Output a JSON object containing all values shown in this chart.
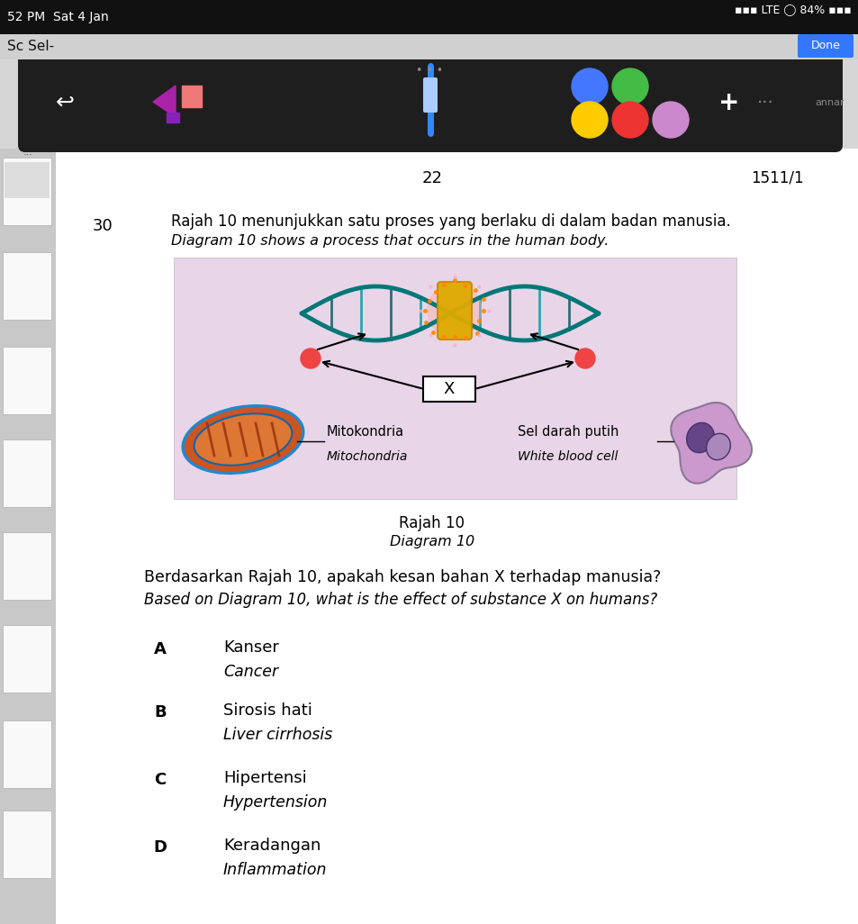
{
  "page_number": "22",
  "page_code": "1511/1",
  "question_number": "30",
  "question_text_malay": "Rajah 10 menunjukkan satu proses yang berlaku di dalam badan manusia.",
  "question_text_english": "Diagram 10 shows a process that occurs in the human body.",
  "diagram_caption_malay": "Rajah 10",
  "diagram_caption_english": "Diagram 10",
  "diagram_label_left_malay": "Mitokondria",
  "diagram_label_left_english": "Mitochondria",
  "diagram_label_right_malay": "Sel darah putih",
  "diagram_label_right_english": "White blood cell",
  "diagram_x_label": "X",
  "question_stem_malay": "Berdasarkan Rajah 10, apakah kesan bahan X terhadap manusia?",
  "question_stem_english": "Based on Diagram 10, what is the effect of substance X on humans?",
  "options": [
    {
      "letter": "A",
      "malay": "Kanser",
      "english": "Cancer"
    },
    {
      "letter": "B",
      "malay": "Sirosis hati",
      "english": "Liver cirrhosis"
    },
    {
      "letter": "C",
      "malay": "Hipertensi",
      "english": "Hypertension"
    },
    {
      "letter": "D",
      "malay": "Keradangan",
      "english": "Inflammation"
    }
  ],
  "bg_color": "#d6d6d6",
  "diagram_bg": "#e8d5e8",
  "toolbar_bg": "#1e1e1e",
  "status_bar_bg": "#111111"
}
